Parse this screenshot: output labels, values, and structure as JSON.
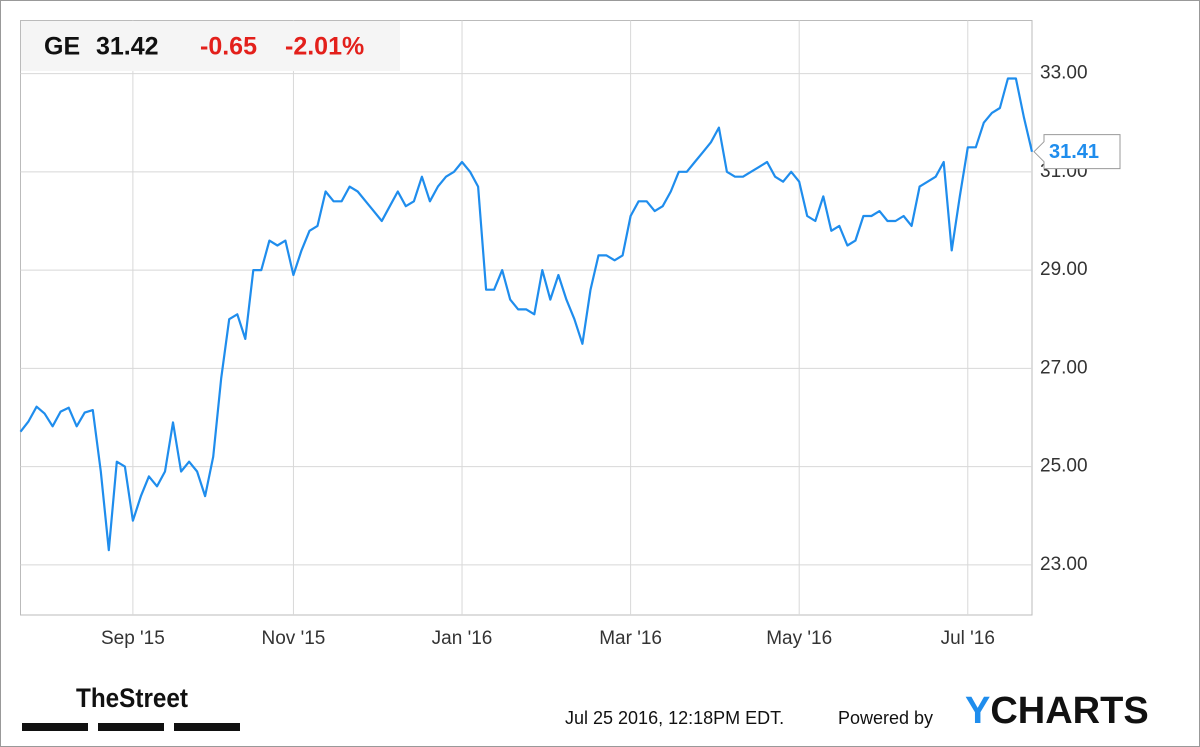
{
  "header": {
    "ticker": "GE",
    "price": "31.42",
    "change": "-0.65",
    "change_pct": "-2.01%"
  },
  "footer": {
    "source": "TheStreet",
    "timestamp": "Jul 25 2016, 12:18PM EDT.",
    "powered": "Powered by",
    "brand": "YCHARTS"
  },
  "chart_data": {
    "type": "line",
    "color": "#1f8ded",
    "grid": true,
    "ylim": [
      21.98,
      34.08
    ],
    "yticks": [
      {
        "value": 23,
        "label": "23.00"
      },
      {
        "value": 25,
        "label": "25.00"
      },
      {
        "value": 27,
        "label": "27.00"
      },
      {
        "value": 29,
        "label": "29.00"
      },
      {
        "value": 31,
        "label": "31.00"
      },
      {
        "value": 33,
        "label": "33.00"
      }
    ],
    "categories": [
      null,
      null,
      null,
      null,
      null,
      null,
      null,
      null,
      null,
      null,
      null,
      null,
      null,
      null,
      "Sep '15",
      null,
      null,
      null,
      null,
      null,
      null,
      null,
      null,
      null,
      null,
      null,
      null,
      null,
      null,
      null,
      null,
      null,
      null,
      null,
      "Nov '15",
      null,
      null,
      null,
      null,
      null,
      null,
      null,
      null,
      null,
      null,
      null,
      null,
      null,
      null,
      null,
      null,
      null,
      null,
      null,
      null,
      "Jan '16",
      null,
      null,
      null,
      null,
      null,
      null,
      null,
      null,
      null,
      null,
      null,
      null,
      null,
      null,
      null,
      null,
      null,
      null,
      null,
      null,
      "Mar '16",
      null,
      null,
      null,
      null,
      null,
      null,
      null,
      null,
      null,
      null,
      null,
      null,
      null,
      null,
      null,
      null,
      null,
      null,
      null,
      null,
      "May '16",
      null,
      null,
      null,
      null,
      null,
      null,
      null,
      null,
      null,
      null,
      null,
      null,
      null,
      null,
      null,
      null,
      null,
      null,
      null,
      null,
      "Jul '16",
      null,
      null,
      null,
      null,
      null,
      null,
      null,
      null
    ],
    "values": [
      25.71,
      25.92,
      26.22,
      26.08,
      25.82,
      26.12,
      26.2,
      25.82,
      26.1,
      26.15,
      24.9,
      23.3,
      25.1,
      25.0,
      23.9,
      24.4,
      24.8,
      24.6,
      24.9,
      25.9,
      24.9,
      25.1,
      24.9,
      24.4,
      25.2,
      26.8,
      28.0,
      28.1,
      27.6,
      29.0,
      29.0,
      29.6,
      29.5,
      29.6,
      28.9,
      29.4,
      29.8,
      29.9,
      30.6,
      30.4,
      30.4,
      30.7,
      30.6,
      30.4,
      30.2,
      30.0,
      30.3,
      30.6,
      30.3,
      30.4,
      30.9,
      30.4,
      30.7,
      30.9,
      31.0,
      31.2,
      31.0,
      30.7,
      28.6,
      28.6,
      29.0,
      28.4,
      28.2,
      28.2,
      28.1,
      29.0,
      28.4,
      28.9,
      28.4,
      28.0,
      27.5,
      28.6,
      29.3,
      29.3,
      29.2,
      29.3,
      30.1,
      30.4,
      30.4,
      30.2,
      30.3,
      30.6,
      31.0,
      31.0,
      31.2,
      31.4,
      31.6,
      31.9,
      31.0,
      30.9,
      30.9,
      31.0,
      31.1,
      31.2,
      30.9,
      30.8,
      31.0,
      30.8,
      30.1,
      30.0,
      30.5,
      29.8,
      29.9,
      29.5,
      29.6,
      30.1,
      30.1,
      30.2,
      30.0,
      30.0,
      30.1,
      29.9,
      30.7,
      30.8,
      30.9,
      31.2,
      29.4,
      30.5,
      31.5,
      31.5,
      32.0,
      32.2,
      32.3,
      32.9,
      32.9,
      32.1,
      31.41
    ]
  }
}
